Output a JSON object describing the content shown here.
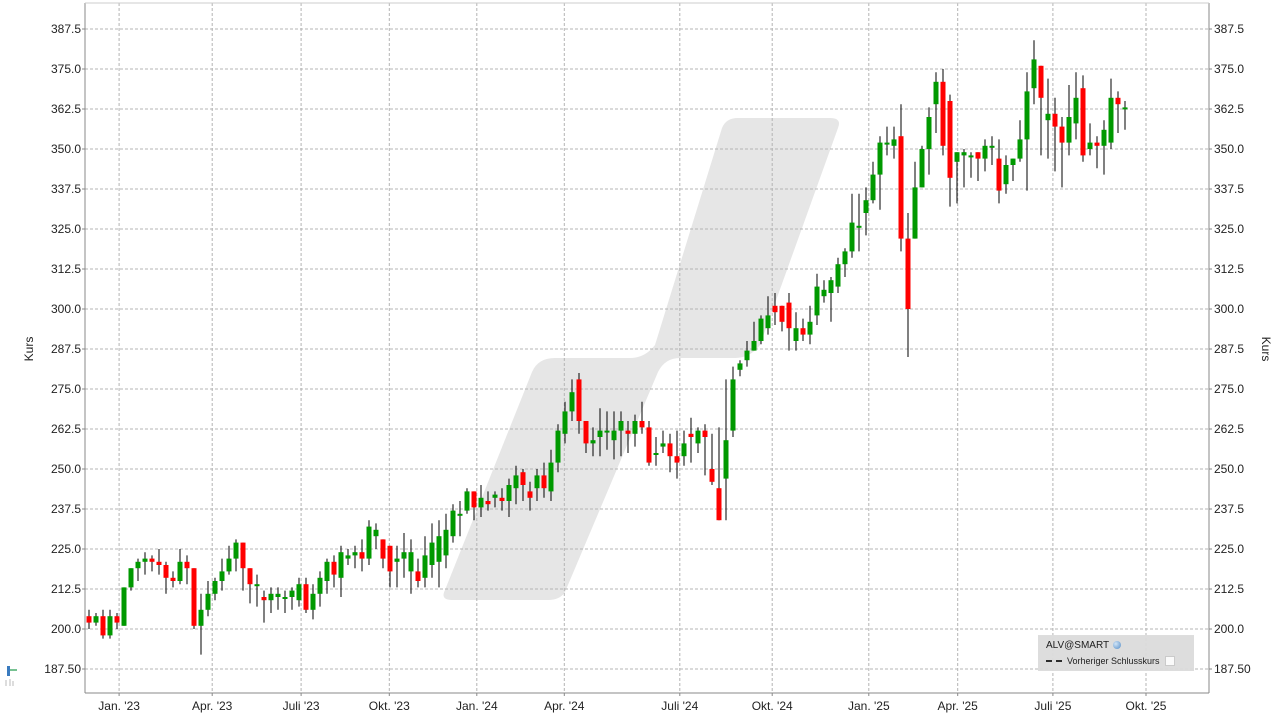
{
  "chart_data": {
    "type": "candlestick",
    "title": "",
    "xlabel": "",
    "ylabel": "Kurs",
    "ylabel_right": "Kurs",
    "ylim": [
      181.5,
      396.25
    ],
    "grid": true,
    "legend_position": "bottom-right",
    "y_ticks_left": [
      "387.5",
      "375.0",
      "362.5",
      "350.0",
      "337.5",
      "325.0",
      "312.5",
      "300.0",
      "287.5",
      "275.0",
      "262.5",
      "250.0",
      "237.5",
      "225.0",
      "212.5",
      "200.0",
      "187.50"
    ],
    "y_ticks_right": [
      "387.5",
      "375.0",
      "362.5",
      "350.0",
      "337.5",
      "325.0",
      "312.5",
      "300.0",
      "287.5",
      "275.0",
      "262.5",
      "250.0",
      "237.5",
      "225.0",
      "212.5",
      "200.0",
      "187.50"
    ],
    "x_ticks": [
      {
        "label": "Jan. '23",
        "week": 4.3
      },
      {
        "label": "Apr. '23",
        "week": 17.6
      },
      {
        "label": "Juli '23",
        "week": 30.3
      },
      {
        "label": "Okt. '23",
        "week": 42.9
      },
      {
        "label": "Jan. '24",
        "week": 55.4
      },
      {
        "label": "Apr. '24",
        "week": 67.9
      },
      {
        "label": "Juli '24",
        "week": 84.4
      },
      {
        "label": "Okt. '24",
        "week": 97.6
      },
      {
        "label": "Jan. '25",
        "week": 111.4
      },
      {
        "label": "Apr. '25",
        "week": 124.1
      },
      {
        "label": "Juli '25",
        "week": 137.7
      },
      {
        "label": "Okt. '25",
        "week": 151.0
      }
    ],
    "colors": {
      "up": "#009900",
      "down": "#ff0000",
      "wick": "#000000",
      "grid": "#b4b4b4",
      "axis": "#888888",
      "watermark": "#e6e6e6"
    },
    "series": [
      {
        "name": "ALV@SMART",
        "ohlc": [
          [
            204,
            202,
            206,
            200
          ],
          [
            202,
            204,
            205,
            201
          ],
          [
            204,
            198,
            206,
            197
          ],
          [
            198,
            204,
            206,
            197
          ],
          [
            204,
            202,
            205,
            200
          ],
          [
            201,
            213,
            213,
            201
          ],
          [
            213,
            219,
            219,
            212
          ],
          [
            219,
            221,
            222,
            215
          ],
          [
            221,
            222,
            224,
            217
          ],
          [
            222,
            221,
            223,
            218
          ],
          [
            221,
            220,
            225,
            217
          ],
          [
            220,
            216,
            221,
            211
          ],
          [
            216,
            215,
            218,
            213
          ],
          [
            215,
            221,
            225,
            214
          ],
          [
            221,
            219,
            223,
            214
          ],
          [
            219,
            201,
            219,
            200
          ],
          [
            201,
            206,
            211,
            192
          ],
          [
            206,
            211,
            215,
            204
          ],
          [
            211,
            215,
            216,
            209
          ],
          [
            215,
            218,
            222,
            212
          ],
          [
            218,
            222,
            226,
            217
          ],
          [
            222,
            227,
            228,
            218
          ],
          [
            227,
            219,
            222,
            212
          ],
          [
            219,
            214,
            218,
            208
          ],
          [
            214,
            214,
            217,
            207
          ],
          [
            210,
            209,
            212,
            202
          ],
          [
            209,
            211,
            213,
            205
          ],
          [
            210,
            211,
            213,
            206
          ],
          [
            210,
            210,
            212,
            205
          ],
          [
            210,
            212,
            213,
            206
          ],
          [
            209,
            214,
            216,
            207
          ],
          [
            214,
            206,
            216,
            205
          ],
          [
            206,
            211,
            214,
            203
          ],
          [
            211,
            216,
            218,
            207
          ],
          [
            215,
            221,
            222,
            211
          ],
          [
            221,
            217,
            223,
            213
          ],
          [
            216,
            224,
            226,
            210
          ],
          [
            222,
            223,
            225,
            220
          ],
          [
            223,
            224,
            226,
            219
          ],
          [
            224,
            222,
            228,
            218
          ],
          [
            222,
            232,
            234,
            220
          ],
          [
            229,
            231,
            233,
            225
          ],
          [
            228,
            222,
            226,
            219
          ],
          [
            226,
            218,
            225,
            213
          ],
          [
            221,
            222,
            226,
            213
          ],
          [
            222,
            224,
            230,
            216
          ],
          [
            218,
            224,
            228,
            211
          ],
          [
            218,
            215,
            222,
            213
          ],
          [
            216,
            223,
            229,
            213
          ],
          [
            220,
            227,
            233,
            216
          ],
          [
            221,
            229,
            234,
            213
          ],
          [
            223,
            231,
            236,
            219
          ],
          [
            229,
            237,
            239,
            227
          ],
          [
            236,
            236,
            240,
            229
          ],
          [
            237,
            243,
            244,
            236
          ],
          [
            243,
            238,
            242,
            234
          ],
          [
            238,
            241,
            245,
            235
          ],
          [
            240,
            239,
            243,
            237
          ],
          [
            241,
            242,
            243,
            238
          ],
          [
            241,
            240,
            244,
            237
          ],
          [
            240,
            245,
            247,
            235
          ],
          [
            244,
            248,
            251,
            239
          ],
          [
            249,
            245,
            250,
            240
          ],
          [
            243,
            241,
            246,
            237
          ],
          [
            244,
            248,
            250,
            240
          ],
          [
            248,
            244,
            252,
            241
          ],
          [
            243,
            252,
            256,
            240
          ],
          [
            252,
            262,
            264,
            249
          ],
          [
            261,
            268,
            271,
            258
          ],
          [
            268,
            274,
            278,
            265
          ],
          [
            278,
            265,
            280,
            261
          ],
          [
            265,
            258,
            263,
            255
          ],
          [
            258,
            259,
            263,
            254
          ],
          [
            260,
            262,
            269,
            254
          ],
          [
            262,
            262,
            268,
            256
          ],
          [
            259,
            262,
            268,
            253
          ],
          [
            262,
            265,
            268,
            254
          ],
          [
            262,
            261,
            265,
            255
          ],
          [
            261,
            265,
            267,
            257
          ],
          [
            265,
            263,
            271,
            261
          ],
          [
            263,
            252,
            265,
            251
          ],
          [
            255,
            255,
            260,
            251
          ],
          [
            257,
            258,
            262,
            255
          ],
          [
            258,
            254,
            261,
            249
          ],
          [
            254,
            252,
            262,
            247
          ],
          [
            254,
            258,
            262,
            251
          ],
          [
            261,
            260,
            266,
            252
          ],
          [
            258,
            262,
            263,
            255
          ],
          [
            262,
            260,
            264,
            248
          ],
          [
            250,
            246,
            261,
            245
          ],
          [
            244,
            234,
            263,
            235
          ],
          [
            247,
            259,
            278,
            234
          ],
          [
            262,
            278,
            282,
            260
          ],
          [
            281,
            283,
            284,
            279
          ],
          [
            284,
            287,
            290,
            282
          ],
          [
            287,
            290,
            296,
            288
          ],
          [
            290,
            297,
            298,
            289
          ],
          [
            294,
            298,
            304,
            292
          ],
          [
            301,
            299,
            305,
            295
          ],
          [
            301,
            296,
            300,
            293
          ],
          [
            302,
            294,
            305,
            287
          ],
          [
            290,
            294,
            299,
            287
          ],
          [
            294,
            292,
            297,
            290
          ],
          [
            292,
            296,
            301,
            289
          ],
          [
            298,
            307,
            311,
            295
          ],
          [
            304,
            306,
            309,
            302
          ],
          [
            305,
            309,
            310,
            296
          ],
          [
            307,
            314,
            316,
            305
          ],
          [
            314,
            318,
            319,
            310
          ],
          [
            318,
            327,
            336,
            316
          ],
          [
            326,
            326,
            336,
            318
          ],
          [
            330,
            334,
            338,
            323
          ],
          [
            334,
            342,
            346,
            333
          ],
          [
            342,
            352,
            354,
            331
          ],
          [
            352,
            352,
            357,
            348
          ],
          [
            351,
            353,
            357,
            347
          ],
          [
            354,
            322,
            364,
            318
          ],
          [
            322,
            300,
            330,
            285
          ],
          [
            322,
            338,
            346,
            323
          ],
          [
            338,
            350,
            351,
            339
          ],
          [
            350,
            360,
            363,
            342
          ],
          [
            364,
            371,
            374,
            355
          ],
          [
            371,
            351,
            375,
            348
          ],
          [
            365,
            341,
            367,
            332
          ],
          [
            346,
            349,
            349,
            333
          ],
          [
            348,
            349,
            350,
            338
          ],
          [
            348,
            348,
            349,
            341
          ],
          [
            349,
            347,
            349,
            340
          ],
          [
            347,
            351,
            353,
            343
          ],
          [
            351,
            351,
            354,
            345
          ],
          [
            347,
            337,
            353,
            333
          ],
          [
            339,
            345,
            348,
            336
          ],
          [
            345,
            347,
            346,
            340
          ],
          [
            347,
            353,
            359,
            346
          ],
          [
            353,
            368,
            374,
            337
          ],
          [
            369,
            378,
            384,
            364
          ],
          [
            376,
            366,
            369,
            348
          ],
          [
            359,
            361,
            372,
            347
          ],
          [
            361,
            357,
            366,
            343
          ],
          [
            357,
            352,
            360,
            338
          ],
          [
            352,
            360,
            370,
            348
          ],
          [
            358,
            366,
            374,
            353
          ],
          [
            369,
            348,
            373,
            346
          ],
          [
            350,
            352,
            358,
            348
          ],
          [
            352,
            351,
            354,
            344
          ],
          [
            351,
            356,
            359,
            342
          ],
          [
            352,
            366,
            372,
            350
          ],
          [
            366,
            364,
            368,
            355
          ],
          [
            363,
            363,
            365,
            356
          ]
        ]
      }
    ],
    "legend": [
      {
        "label": "ALV@SMART",
        "icon": "globe-icon"
      },
      {
        "label": "Vorheriger Schlusskurs",
        "style": "dashed",
        "icon": "checkbox-icon"
      }
    ],
    "annotations": []
  },
  "legend": {
    "title": "ALV@SMART",
    "prev_close_label": "Vorheriger Schlusskurs"
  },
  "axes": {
    "left_label": "Kurs",
    "right_label": "Kurs"
  }
}
